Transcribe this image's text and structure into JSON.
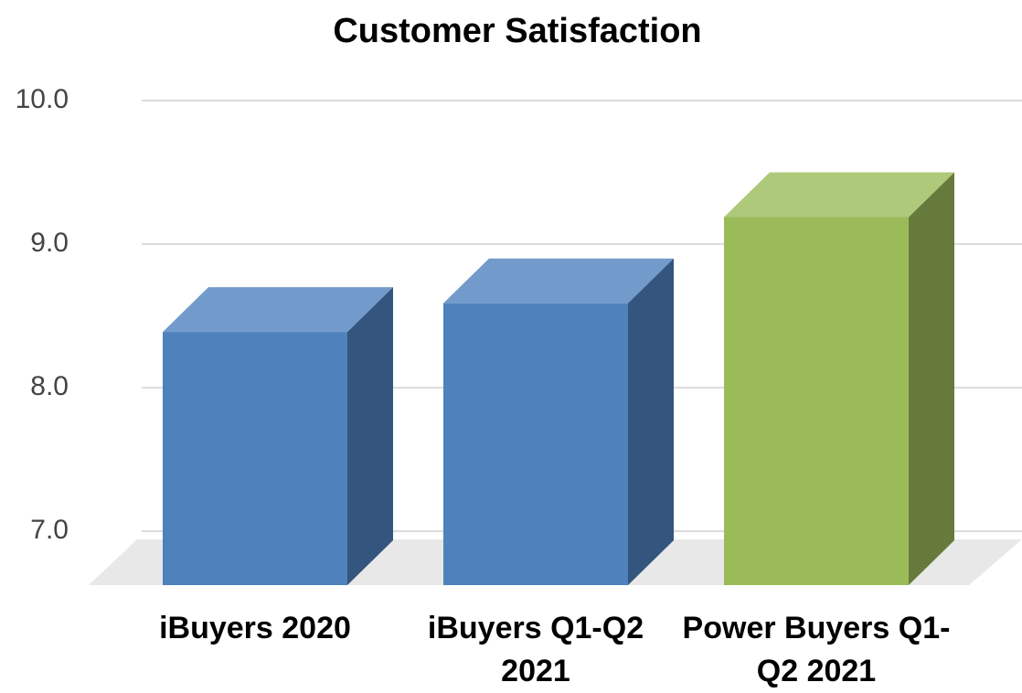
{
  "chart_data": {
    "type": "bar3d",
    "title": "Customer Satisfaction",
    "categories": [
      "iBuyers 2020",
      "iBuyers Q1-Q2 2021",
      "Power Buyers Q1-Q2 2021"
    ],
    "values": [
      8.7,
      8.9,
      9.5
    ],
    "colors": [
      "#4f81bd",
      "#4f81bd",
      "#9bbb59"
    ],
    "ylim": [
      7,
      10
    ],
    "yticks": [
      {
        "value": 7,
        "label": "7.0"
      },
      {
        "value": 8,
        "label": "8.0"
      },
      {
        "value": 9,
        "label": "9.0"
      },
      {
        "value": 10,
        "label": "10.0"
      }
    ],
    "grid": true
  }
}
